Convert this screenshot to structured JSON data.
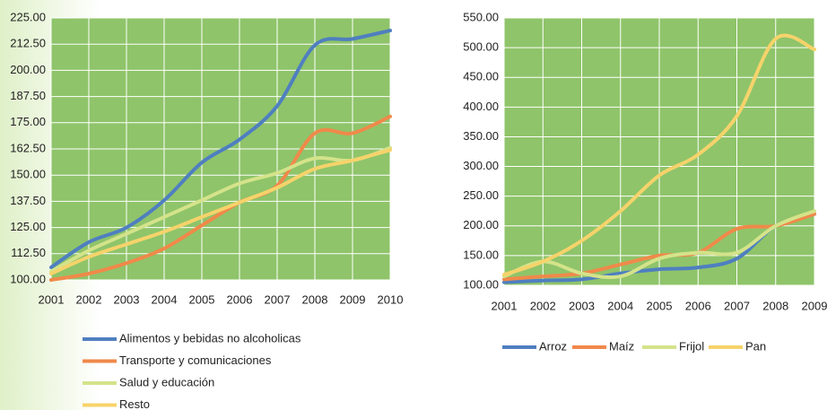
{
  "chart_data": [
    {
      "type": "line",
      "categories": [
        "2001",
        "2002",
        "2003",
        "2004",
        "2005",
        "2006",
        "2007",
        "2008",
        "2009",
        "2010"
      ],
      "series": [
        {
          "name": "Alimentos y bebidas no alcoholicas",
          "color": "#4f7fc0",
          "values": [
            106,
            118,
            125,
            138,
            156,
            167,
            183,
            212,
            215,
            219
          ]
        },
        {
          "name": "Transporte y comunicaciones",
          "color": "#f0894a",
          "values": [
            100,
            103,
            108,
            115,
            126,
            137,
            145,
            170,
            170,
            178
          ]
        },
        {
          "name": "Salud y educación",
          "color": "#d4e38a",
          "values": [
            104,
            114,
            122,
            130,
            138,
            146,
            151,
            158,
            157,
            163
          ]
        },
        {
          "name": "Resto",
          "color": "#f6d36b",
          "values": [
            103,
            111,
            117,
            123,
            130,
            137,
            144,
            153,
            157,
            162
          ]
        }
      ],
      "ylim": [
        100,
        225
      ],
      "yticks": [
        {
          "value": 100,
          "label": "100.00"
        },
        {
          "value": 112.5,
          "label": "112.50"
        },
        {
          "value": 125,
          "label": "125.00"
        },
        {
          "value": 137.5,
          "label": "137.50"
        },
        {
          "value": 150,
          "label": "150.00"
        },
        {
          "value": 162.5,
          "label": "162.50"
        },
        {
          "value": 175,
          "label": "175.00"
        },
        {
          "value": 187.5,
          "label": "187.50"
        },
        {
          "value": 200,
          "label": "200.00"
        },
        {
          "value": 212.5,
          "label": "212.50"
        },
        {
          "value": 225,
          "label": "225.00"
        }
      ],
      "grid": true,
      "legend": "bottom"
    },
    {
      "type": "line",
      "categories": [
        "2001",
        "2002",
        "2003",
        "2004",
        "2005",
        "2006",
        "2007",
        "2008",
        "2009"
      ],
      "series": [
        {
          "name": "Arroz",
          "color": "#4f7fc0",
          "values": [
            105,
            108,
            110,
            120,
            127,
            130,
            145,
            200,
            220
          ]
        },
        {
          "name": "Maíz",
          "color": "#f0894a",
          "values": [
            110,
            115,
            120,
            135,
            150,
            155,
            195,
            200,
            220
          ]
        },
        {
          "name": "Frijol",
          "color": "#d4e38a",
          "values": [
            115,
            140,
            120,
            115,
            145,
            155,
            155,
            200,
            225
          ]
        },
        {
          "name": "Pan",
          "color": "#f6d36b",
          "values": [
            118,
            140,
            175,
            225,
            285,
            320,
            385,
            515,
            497
          ]
        }
      ],
      "ylim": [
        100,
        550
      ],
      "yticks": [
        {
          "value": 100,
          "label": "100.00"
        },
        {
          "value": 150,
          "label": "150.00"
        },
        {
          "value": 200,
          "label": "200.00"
        },
        {
          "value": 250,
          "label": "250.00"
        },
        {
          "value": 300,
          "label": "300.00"
        },
        {
          "value": 350,
          "label": "350.00"
        },
        {
          "value": 400,
          "label": "400.00"
        },
        {
          "value": 450,
          "label": "450.00"
        },
        {
          "value": 500,
          "label": "500.00"
        },
        {
          "value": 550,
          "label": "550.00"
        }
      ],
      "grid": true,
      "legend": "bottom"
    }
  ]
}
